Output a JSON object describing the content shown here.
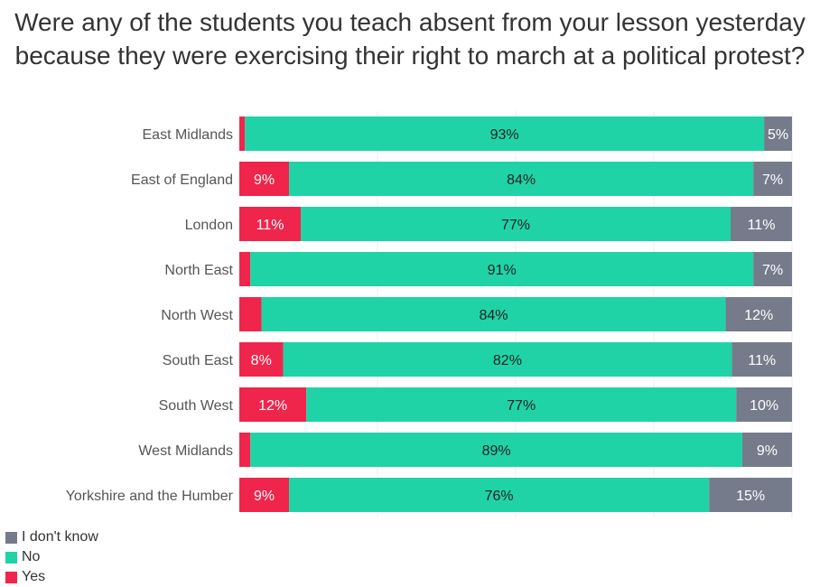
{
  "chart_data": {
    "type": "bar",
    "orientation": "horizontal",
    "stacked": true,
    "normalized": true,
    "title": "Were any of the students you teach absent from your lesson yesterday because they were exercising their right to march at a political protest?",
    "categories": [
      "East Midlands",
      "East of England",
      "London",
      "North East",
      "North West",
      "South East",
      "South West",
      "West Midlands",
      "Yorkshire and the Humber"
    ],
    "series": [
      {
        "name": "Yes",
        "color": "#f0254c",
        "values": [
          1,
          9,
          11,
          2,
          4,
          8,
          12,
          2,
          9
        ],
        "labels": [
          "",
          "9%",
          "11%",
          "",
          "",
          "8%",
          "12%",
          "",
          "9%"
        ]
      },
      {
        "name": "No",
        "color": "#1fd3a6",
        "values": [
          93,
          84,
          77,
          91,
          84,
          82,
          77,
          89,
          76
        ],
        "labels": [
          "93%",
          "84%",
          "77%",
          "91%",
          "84%",
          "82%",
          "77%",
          "89%",
          "76%"
        ]
      },
      {
        "name": "I don't know",
        "color": "#757b8a",
        "values": [
          5,
          7,
          11,
          7,
          12,
          11,
          10,
          9,
          15
        ],
        "labels": [
          "5%",
          "7%",
          "11%",
          "7%",
          "12%",
          "11%",
          "10%",
          "9%",
          "15%"
        ]
      }
    ],
    "legend_order": [
      "I don't know",
      "No",
      "Yes"
    ],
    "legend_position": "bottom-left",
    "grid": true
  }
}
